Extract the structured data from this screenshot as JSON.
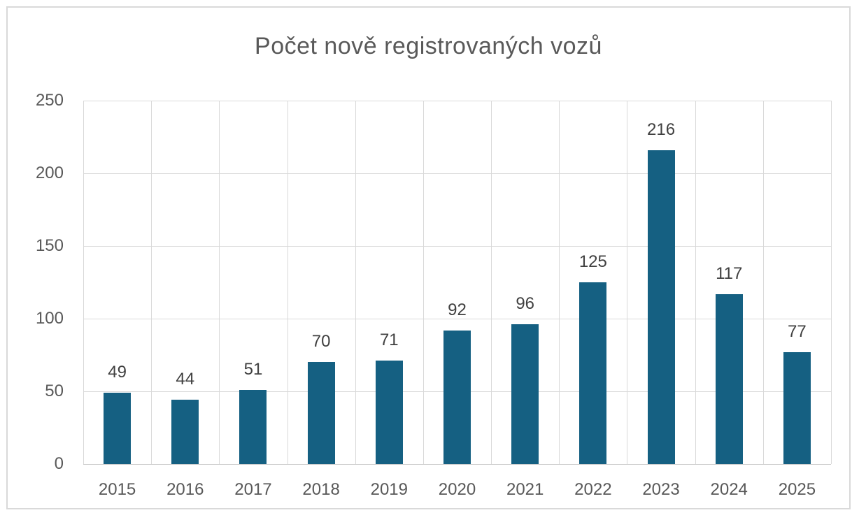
{
  "chart_data": {
    "type": "bar",
    "title": "Počet nově registrovaných vozů",
    "categories": [
      "2015",
      "2016",
      "2017",
      "2018",
      "2019",
      "2020",
      "2021",
      "2022",
      "2023",
      "2024",
      "2025"
    ],
    "values": [
      49,
      44,
      51,
      70,
      71,
      92,
      96,
      125,
      216,
      117,
      77
    ],
    "xlabel": "",
    "ylabel": "",
    "ylim": [
      0,
      250
    ],
    "yticks": [
      0,
      50,
      100,
      150,
      200,
      250
    ],
    "grid": true,
    "legend": "none",
    "data_labels": "outside-end",
    "colors": {
      "bar": "#156082",
      "data_label": "#404040",
      "axis_text": "#595959",
      "title_text": "#595959",
      "gridline": "#D9D9D9",
      "axis_line": "#C6C6C6",
      "frame_border": "#D9D9D9",
      "background": "#FFFFFF"
    }
  }
}
